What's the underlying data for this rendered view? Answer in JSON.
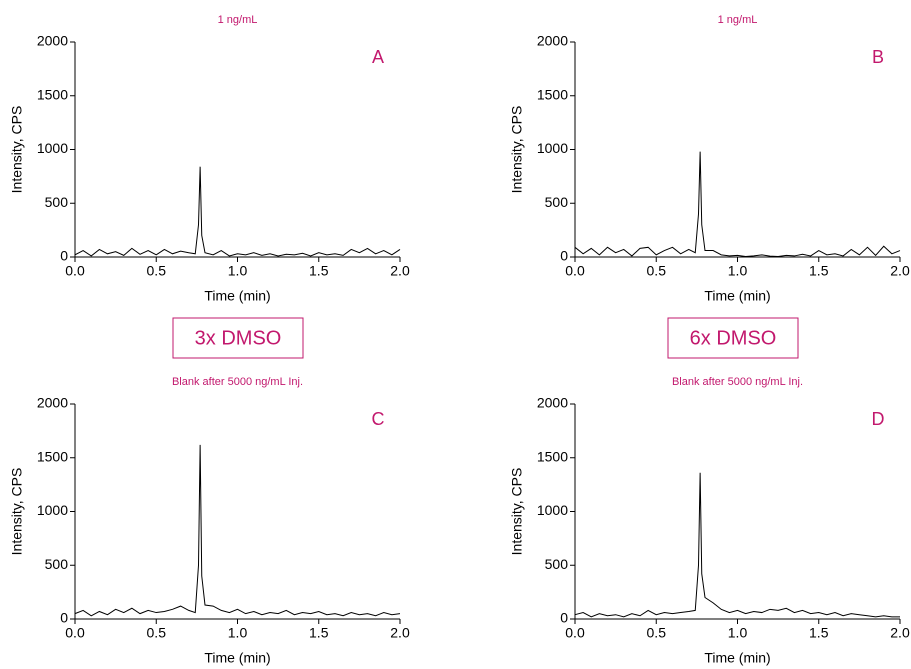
{
  "chart_data": [
    {
      "type": "line",
      "title": "1 ng/mL",
      "panel_label": "A",
      "x_label": "Time (min)",
      "y_label": "Intensity, CPS",
      "x": [
        0,
        0.05,
        0.1,
        0.15,
        0.2,
        0.25,
        0.3,
        0.35,
        0.4,
        0.45,
        0.5,
        0.55,
        0.6,
        0.65,
        0.7,
        0.74,
        0.76,
        0.77,
        0.78,
        0.8,
        0.85,
        0.9,
        0.95,
        1.0,
        1.05,
        1.1,
        1.15,
        1.2,
        1.25,
        1.3,
        1.35,
        1.4,
        1.45,
        1.5,
        1.55,
        1.6,
        1.65,
        1.7,
        1.75,
        1.8,
        1.85,
        1.9,
        1.95,
        2.0
      ],
      "values": [
        20,
        60,
        10,
        70,
        30,
        50,
        15,
        80,
        25,
        60,
        20,
        70,
        30,
        55,
        40,
        30,
        300,
        840,
        200,
        40,
        20,
        60,
        10,
        30,
        20,
        40,
        15,
        30,
        10,
        25,
        20,
        35,
        10,
        40,
        20,
        30,
        15,
        70,
        40,
        80,
        30,
        60,
        20,
        70
      ],
      "color": "#000000",
      "title_color": "#c2186d",
      "xlim": [
        0,
        2
      ],
      "ylim": [
        0,
        2000
      ],
      "xticks": [
        {
          "value": 0,
          "label": "0.0"
        },
        0.5,
        {
          "value": 1,
          "label": "1.0"
        },
        1.5,
        {
          "value": 2,
          "label": "2.0"
        }
      ],
      "yticks": [
        0,
        500,
        1000,
        1500,
        2000
      ]
    },
    {
      "type": "line",
      "title": "1 ng/mL",
      "panel_label": "B",
      "x_label": "Time (min)",
      "y_label": "Intensity, CPS",
      "x": [
        0,
        0.05,
        0.1,
        0.15,
        0.2,
        0.25,
        0.3,
        0.35,
        0.4,
        0.45,
        0.5,
        0.55,
        0.6,
        0.65,
        0.7,
        0.74,
        0.76,
        0.77,
        0.78,
        0.8,
        0.85,
        0.9,
        0.95,
        1.0,
        1.05,
        1.1,
        1.15,
        1.2,
        1.25,
        1.3,
        1.35,
        1.4,
        1.45,
        1.5,
        1.55,
        1.6,
        1.65,
        1.7,
        1.75,
        1.8,
        1.85,
        1.9,
        1.95,
        2.0
      ],
      "values": [
        90,
        30,
        80,
        20,
        90,
        40,
        70,
        10,
        80,
        90,
        20,
        60,
        90,
        30,
        70,
        40,
        400,
        980,
        300,
        60,
        60,
        20,
        10,
        15,
        5,
        10,
        20,
        8,
        5,
        15,
        10,
        25,
        10,
        60,
        20,
        30,
        10,
        70,
        20,
        90,
        15,
        100,
        30,
        60
      ],
      "color": "#000000",
      "title_color": "#c2186d",
      "xlim": [
        0,
        2
      ],
      "ylim": [
        0,
        2000
      ],
      "xticks": [
        {
          "value": 0,
          "label": "0.0"
        },
        0.5,
        {
          "value": 1,
          "label": "1.0"
        },
        1.5,
        {
          "value": 2,
          "label": "2.0"
        }
      ],
      "yticks": [
        0,
        500,
        1000,
        1500,
        2000
      ]
    },
    {
      "type": "line",
      "title": "Blank after 5000 ng/mL Inj.",
      "panel_label": "C",
      "x_label": "Time (min)",
      "y_label": "Intensity, CPS",
      "x": [
        0,
        0.05,
        0.1,
        0.15,
        0.2,
        0.25,
        0.3,
        0.35,
        0.4,
        0.45,
        0.5,
        0.55,
        0.6,
        0.65,
        0.7,
        0.74,
        0.76,
        0.77,
        0.78,
        0.8,
        0.85,
        0.9,
        0.95,
        1.0,
        1.05,
        1.1,
        1.15,
        1.2,
        1.25,
        1.3,
        1.35,
        1.4,
        1.45,
        1.5,
        1.55,
        1.6,
        1.65,
        1.7,
        1.75,
        1.8,
        1.85,
        1.9,
        1.95,
        2.0
      ],
      "values": [
        50,
        80,
        30,
        70,
        40,
        90,
        60,
        100,
        50,
        80,
        60,
        70,
        90,
        120,
        80,
        60,
        500,
        1620,
        400,
        130,
        120,
        80,
        60,
        90,
        50,
        70,
        40,
        60,
        50,
        80,
        40,
        60,
        50,
        70,
        40,
        50,
        30,
        60,
        40,
        50,
        30,
        60,
        40,
        50
      ],
      "color": "#000000",
      "title_color": "#c2186d",
      "xlim": [
        0,
        2
      ],
      "ylim": [
        0,
        2000
      ],
      "xticks": [
        {
          "value": 0,
          "label": "0.0"
        },
        0.5,
        {
          "value": 1,
          "label": "1.0"
        },
        1.5,
        {
          "value": 2,
          "label": "2.0"
        }
      ],
      "yticks": [
        0,
        500,
        1000,
        1500,
        2000
      ]
    },
    {
      "type": "line",
      "title": "Blank after 5000 ng/mL Inj.",
      "panel_label": "D",
      "x_label": "Time (min)",
      "y_label": "Intensity, CPS",
      "x": [
        0,
        0.05,
        0.1,
        0.15,
        0.2,
        0.25,
        0.3,
        0.35,
        0.4,
        0.45,
        0.5,
        0.55,
        0.6,
        0.65,
        0.7,
        0.74,
        0.76,
        0.77,
        0.78,
        0.8,
        0.85,
        0.9,
        0.95,
        1.0,
        1.05,
        1.1,
        1.15,
        1.2,
        1.25,
        1.3,
        1.35,
        1.4,
        1.45,
        1.5,
        1.55,
        1.6,
        1.65,
        1.7,
        1.75,
        1.8,
        1.85,
        1.9,
        1.95,
        2.0
      ],
      "values": [
        40,
        60,
        20,
        50,
        30,
        40,
        20,
        50,
        30,
        80,
        40,
        60,
        50,
        60,
        70,
        80,
        500,
        1360,
        420,
        200,
        150,
        90,
        60,
        80,
        50,
        70,
        60,
        90,
        80,
        100,
        60,
        80,
        50,
        60,
        40,
        60,
        30,
        50,
        40,
        30,
        20,
        30,
        20,
        20
      ],
      "color": "#000000",
      "title_color": "#c2186d",
      "xlim": [
        0,
        2
      ],
      "ylim": [
        0,
        2000
      ],
      "xticks": [
        {
          "value": 0,
          "label": "0.0"
        },
        0.5,
        {
          "value": 1,
          "label": "1.0"
        },
        1.5,
        {
          "value": 2,
          "label": "2.0"
        }
      ],
      "yticks": [
        0,
        500,
        1000,
        1500,
        2000
      ]
    }
  ],
  "annotations": [
    "3x DMSO",
    "6x DMSO"
  ]
}
